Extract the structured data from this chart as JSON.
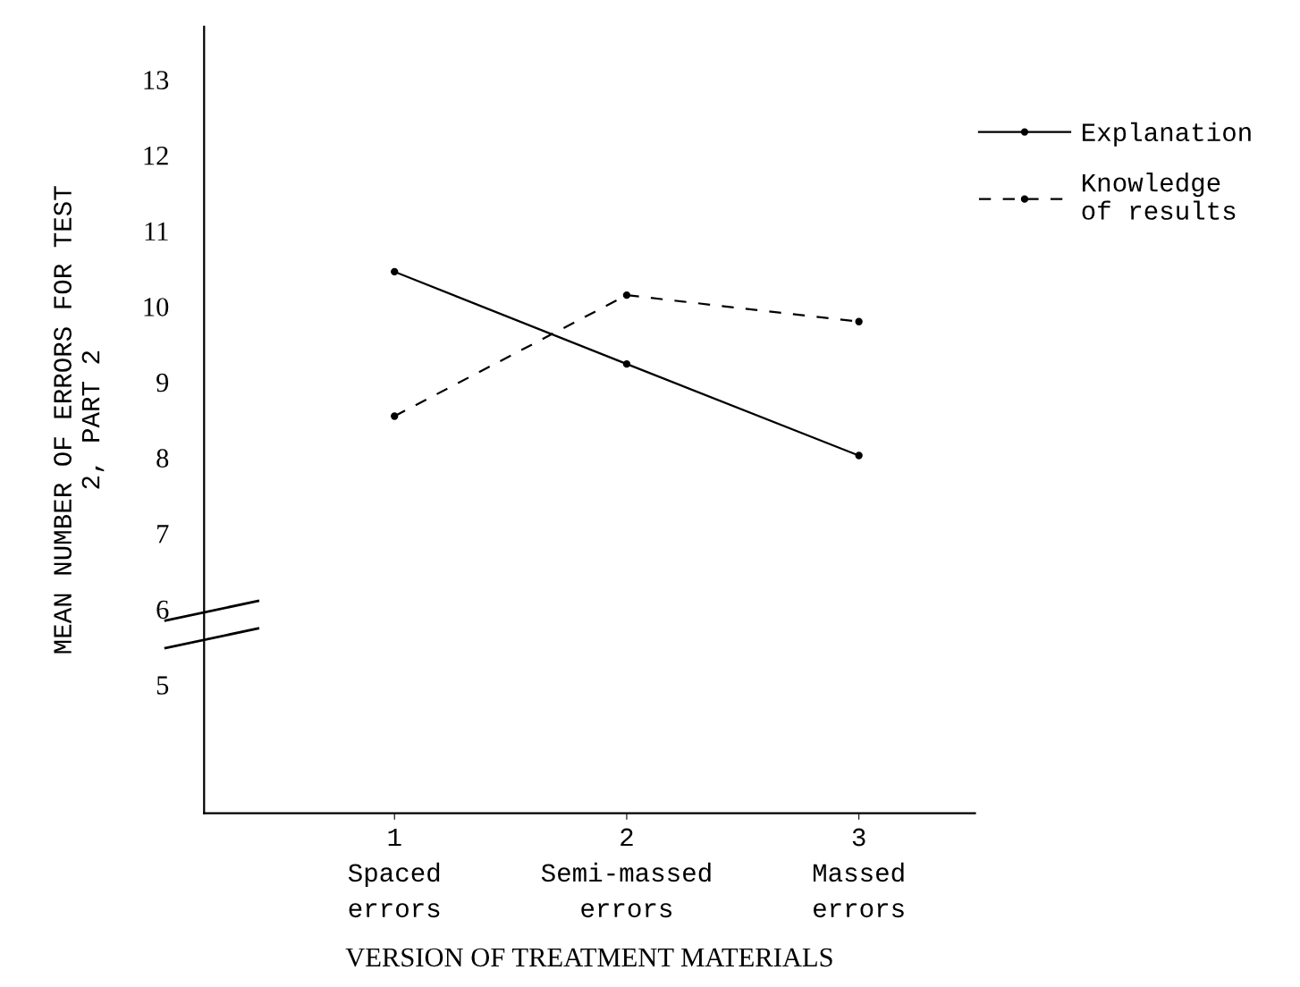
{
  "chart_data": {
    "type": "line",
    "ylabel": "MEAN NUMBER OF ERRORS FOR TEST\n2, PART 2",
    "xlabel": "VERSION OF TREATMENT MATERIALS",
    "categories": [
      "1\nSpaced\nerrors",
      "2\nSemi-massed\nerrors",
      "3\nMassed\nerrors"
    ],
    "series": [
      {
        "name": "Explanation",
        "color": "#000000",
        "values": [
          10.46,
          9.24,
          8.03
        ],
        "line_style": "solid"
      },
      {
        "name": "Knowledge\nof results",
        "color": "#000000",
        "values": [
          8.55,
          10.15,
          9.8
        ],
        "line_style": "dashed"
      }
    ],
    "ylim": [
      3.3,
      13.7
    ],
    "yticks": [
      5,
      6,
      7,
      8,
      9,
      10,
      11,
      12,
      13
    ],
    "marker": "circle",
    "grid": false,
    "legend": "top right"
  }
}
